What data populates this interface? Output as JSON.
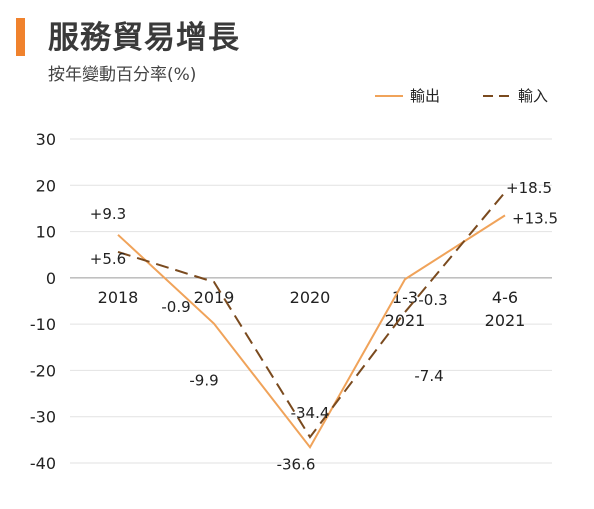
{
  "chart_data": {
    "type": "line",
    "title": "服務貿易增長",
    "subtitle": "按年變動百分率(%)",
    "categories": [
      {
        "line1": "2018",
        "line2": ""
      },
      {
        "line1": "2019",
        "line2": ""
      },
      {
        "line1": "2020",
        "line2": ""
      },
      {
        "line1": "1-3",
        "line2": "2021"
      },
      {
        "line1": "4-6",
        "line2": "2021"
      }
    ],
    "series": [
      {
        "name": "輸出",
        "color": "#f0a35a",
        "dash": "solid",
        "values": [
          9.3,
          -9.9,
          -36.6,
          -0.3,
          13.5
        ],
        "labels": [
          "+9.3",
          "-9.9",
          "-36.6",
          "-0.3",
          "+13.5"
        ]
      },
      {
        "name": "輸入",
        "color": "#7a4a1e",
        "dash": "dashed",
        "values": [
          5.6,
          -0.9,
          -34.4,
          -7.4,
          18.5
        ],
        "labels": [
          "+5.6",
          "-0.9",
          "-34.4",
          "-7.4",
          "+18.5"
        ]
      }
    ],
    "yticks": [
      30,
      20,
      10,
      0,
      -10,
      -20,
      -30,
      -40
    ],
    "ylim": [
      -40,
      30
    ],
    "grid": true,
    "legend": "top-right"
  }
}
